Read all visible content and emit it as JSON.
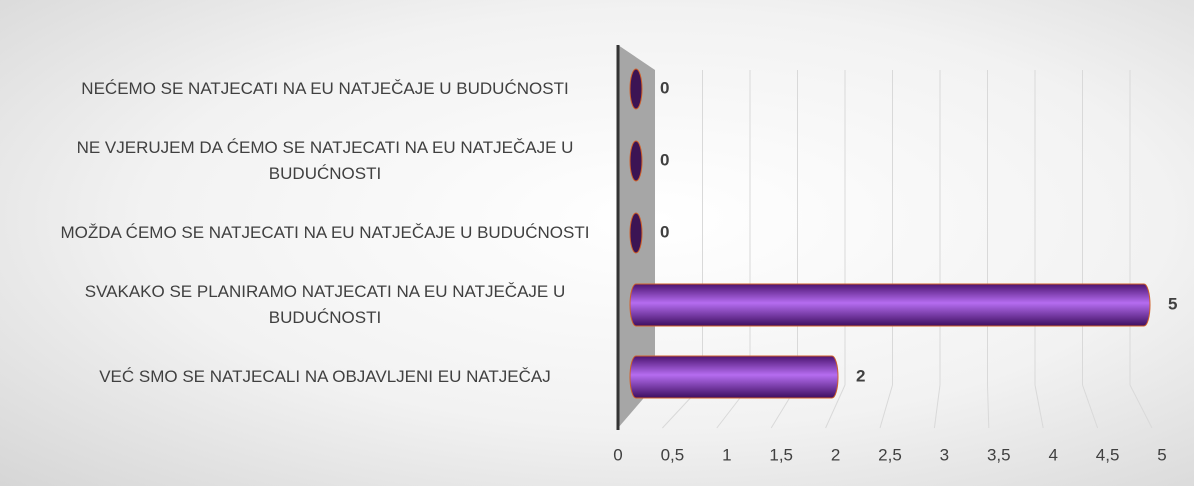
{
  "chart_data": {
    "type": "bar",
    "categories": [
      "NEĆEMO SE NATJECATI NA EU NATJEČAJE U BUDUĆNOSTI",
      "NE VJERUJEM DA ĆEMO SE NATJECATI NA EU NATJEČAJE U BUDUĆNOSTI",
      "MOŽDA ĆEMO SE NATJECATI NA EU NATJEČAJE U BUDUĆNOSTI",
      "SVAKAKO SE PLANIRAMO NATJECATI NA EU NATJEČAJE U BUDUĆNOSTI",
      "VEĆ SMO SE NATJECALI NA OBJAVLJENI EU NATJEČAJ"
    ],
    "values": [
      0,
      0,
      0,
      5,
      2
    ],
    "color": "#8a3fc8",
    "xlim": [
      0,
      5
    ],
    "xticks": [
      0,
      {
        "value": 0.5,
        "label": "0,5"
      },
      1,
      {
        "value": 1.5,
        "label": "1,5"
      },
      2,
      {
        "value": 2.5,
        "label": "2,5"
      },
      3,
      {
        "value": 3.5,
        "label": "3,5"
      },
      4,
      {
        "value": 4.5,
        "label": "4,5"
      },
      5
    ],
    "grid": true
  }
}
